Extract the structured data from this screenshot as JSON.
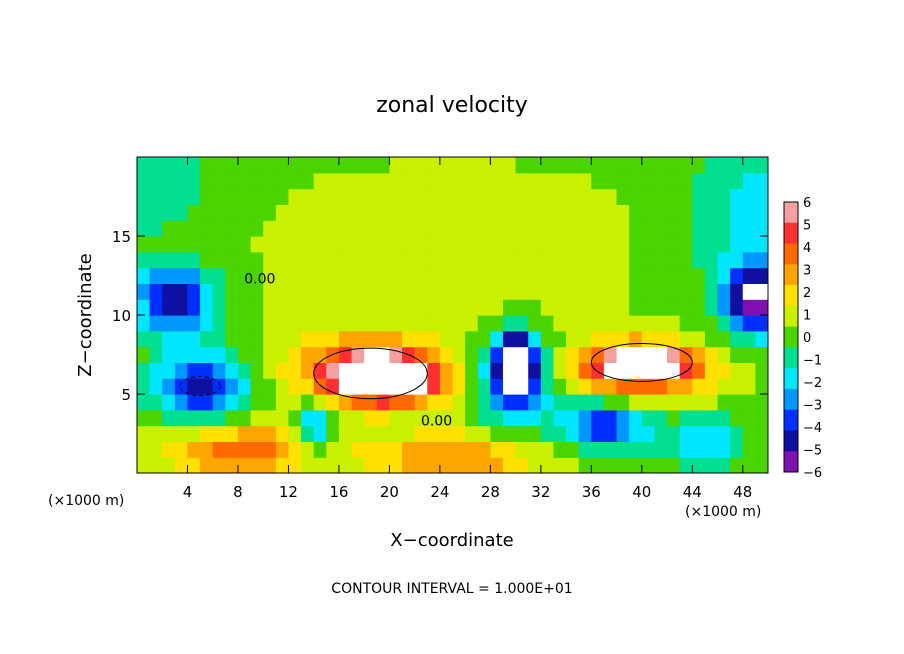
{
  "chart_data": {
    "type": "heatmap",
    "title": "zonal velocity",
    "xlabel": "X−coordinate",
    "ylabel": "Z−coordinate",
    "x_unit_left": "(×1000 m)",
    "x_unit_right": "(×1000 m)",
    "footer": "CONTOUR INTERVAL = 1.000E+01",
    "xlim": [
      0,
      50
    ],
    "ylim": [
      0,
      20
    ],
    "x_ticks": [
      4,
      8,
      12,
      16,
      20,
      24,
      28,
      32,
      36,
      40,
      44,
      48
    ],
    "y_ticks": [
      5,
      10,
      15
    ],
    "colorbar": {
      "ticks": [
        6,
        5,
        4,
        3,
        2,
        1,
        0,
        -1,
        -2,
        -3,
        -4,
        -5,
        -6
      ],
      "colors": [
        "#f5a0a0",
        "#ff3030",
        "#ff6a00",
        "#ffa500",
        "#ffe000",
        "#c8f000",
        "#4ad400",
        "#00e090",
        "#00e6ff",
        "#0098ff",
        "#0030ff",
        "#1010a0",
        "#8010b0"
      ]
    },
    "contour_labels": [
      "0.00",
      "0.00"
    ],
    "zones": [
      {
        "x": 0,
        "y": 19,
        "rx": 7,
        "ry": 5,
        "v": -1.8
      },
      {
        "x": 50,
        "y": 16,
        "rx": 7,
        "ry": 7,
        "v": -2.5
      },
      {
        "x": 25,
        "y": 15,
        "rx": 18,
        "ry": 5,
        "v": 0.7
      },
      {
        "x": 25,
        "y": 10,
        "rx": 14,
        "ry": 3,
        "v": 0.5
      },
      {
        "x": 3,
        "y": 11,
        "rx": 3.5,
        "ry": 2.5,
        "v": -6
      },
      {
        "x": 5,
        "y": 5.5,
        "rx": 4.5,
        "ry": 2.8,
        "v": -5
      },
      {
        "x": 18,
        "y": 6.5,
        "rx": 7,
        "ry": 2.6,
        "v": 4.5
      },
      {
        "x": 20,
        "y": 6,
        "rx": 5,
        "ry": 1.8,
        "v": 6.5
      },
      {
        "x": 30,
        "y": 6,
        "rx": 3.5,
        "ry": 3.5,
        "v": -4.5
      },
      {
        "x": 30,
        "y": 7,
        "rx": 1.8,
        "ry": 2.2,
        "v": -7
      },
      {
        "x": 40,
        "y": 6.5,
        "rx": 7,
        "ry": 2.2,
        "v": 4.5
      },
      {
        "x": 40,
        "y": 7,
        "rx": 4,
        "ry": 1.2,
        "v": 6.5
      },
      {
        "x": 37,
        "y": 3,
        "rx": 4,
        "ry": 1.8,
        "v": -5
      },
      {
        "x": 49,
        "y": 11,
        "rx": 3,
        "ry": 2.5,
        "v": -6
      },
      {
        "x": 8,
        "y": 1.5,
        "rx": 7,
        "ry": 2,
        "v": 4
      },
      {
        "x": 25,
        "y": 1,
        "rx": 8,
        "ry": 1.8,
        "v": 3.5
      },
      {
        "x": 14,
        "y": 3,
        "rx": 1.5,
        "ry": 2,
        "v": -4
      },
      {
        "x": 45,
        "y": 2,
        "rx": 4,
        "ry": 2,
        "v": -2.5
      }
    ]
  }
}
